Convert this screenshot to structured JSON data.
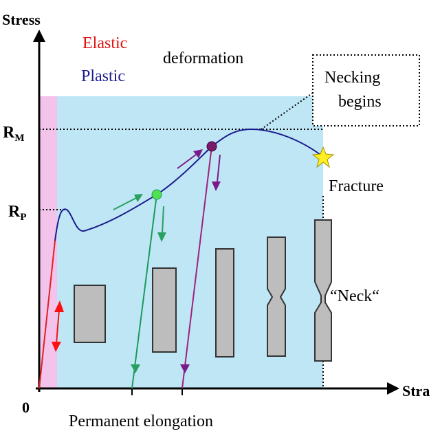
{
  "axes": {
    "y_label": "Stress",
    "x_label": "Stra",
    "origin": "0"
  },
  "regions": {
    "elastic": "Elastic",
    "plastic": "Plastic",
    "deformation": "deformation"
  },
  "levels": {
    "rm": {
      "symbol": "R",
      "subscript": "M"
    },
    "rp": {
      "symbol": "R",
      "subscript": "P"
    }
  },
  "callout": {
    "lines": [
      "Necking",
      "begins"
    ]
  },
  "annotations": {
    "fracture": "Fracture",
    "neck": "“Neck“",
    "permanent_elongation": "Permanent elongation"
  }
}
